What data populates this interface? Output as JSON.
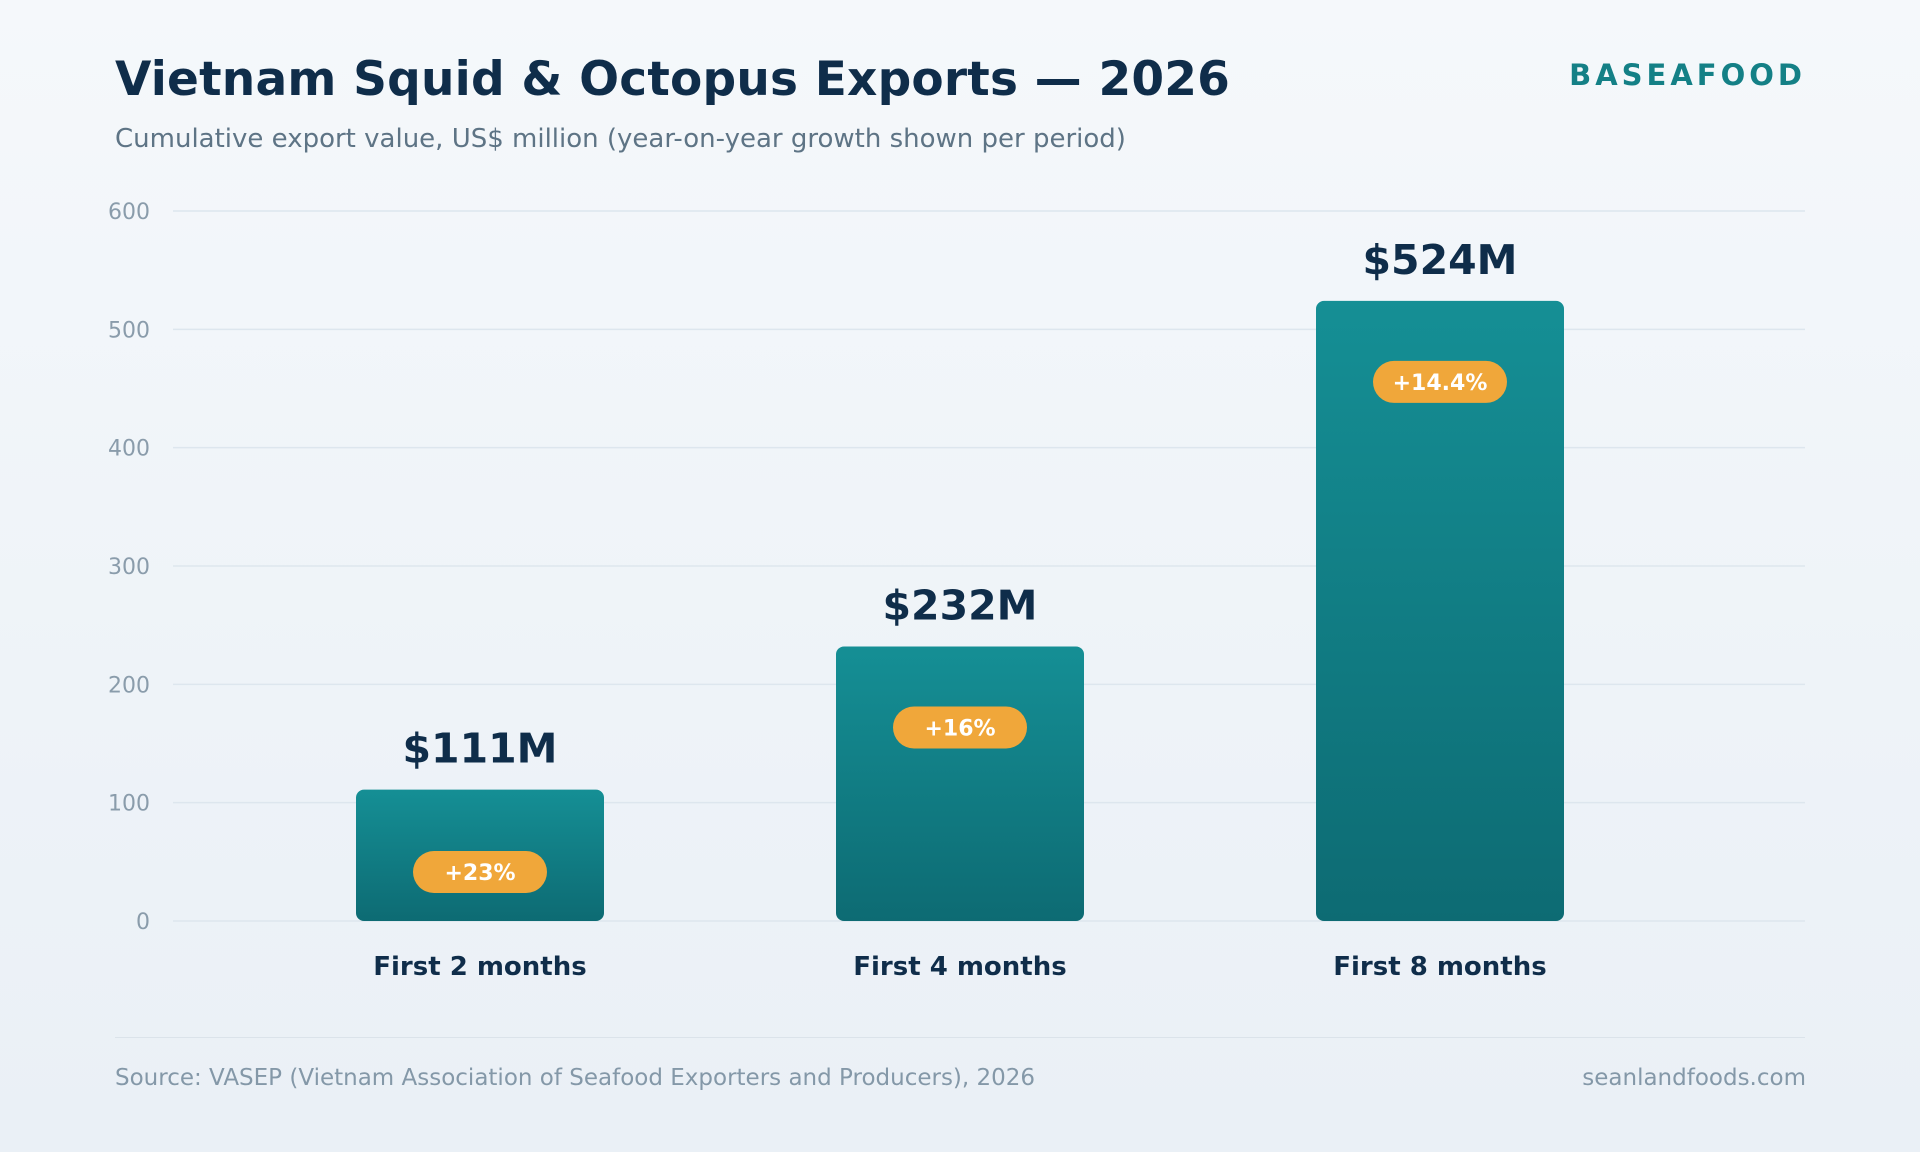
{
  "header": {
    "title": "Vietnam Squid & Octopus Exports — 2026",
    "subtitle": "Cumulative export value, US$ million (year-on-year growth shown per period)",
    "brand": "BASEAFOOD"
  },
  "footer": {
    "source": "Source: VASEP (Vietnam Association of Seafood Exporters and Producers), 2026",
    "site": "seanlandfoods.com"
  },
  "colors": {
    "bar_top": "#158f95",
    "bar_bottom": "#0d6b73",
    "badge": "#f0a73a",
    "value_text": "#0f2d4a",
    "tick_text": "#8a9cab",
    "grid": "#dde6ee"
  },
  "chart_data": {
    "type": "bar",
    "title": "Vietnam Squid & Octopus Exports — 2026",
    "subtitle": "Cumulative export value, US$ million (year-on-year growth shown per period)",
    "categories": [
      "First 2 months",
      "First 4 months",
      "First 8 months"
    ],
    "values": [
      111,
      232,
      524
    ],
    "value_labels": [
      "$111M",
      "$232M",
      "$524M"
    ],
    "growth_labels": [
      "+23%",
      "+16%",
      "+14.4%"
    ],
    "ylim": [
      0,
      600
    ],
    "yticks": [
      0,
      100,
      200,
      300,
      400,
      500,
      600
    ],
    "grid": true,
    "legend": "none"
  }
}
